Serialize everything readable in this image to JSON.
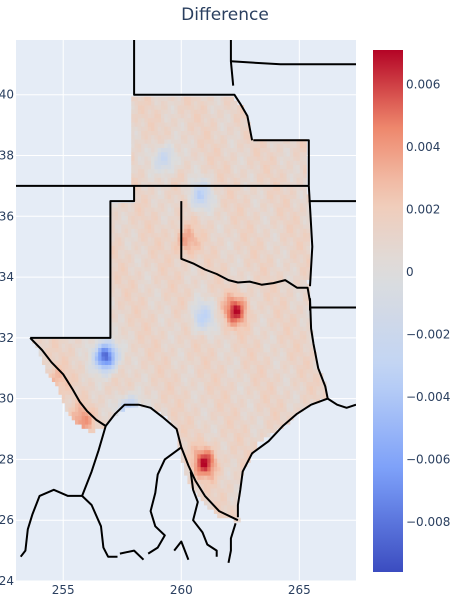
{
  "title": "Difference",
  "x_axis": {
    "ticks": [
      {
        "v": 255,
        "label": "255"
      },
      {
        "v": 260,
        "label": "260"
      },
      {
        "v": 265,
        "label": "265"
      }
    ]
  },
  "y_axis": {
    "ticks": [
      {
        "v": 24,
        "label": "24"
      },
      {
        "v": 26,
        "label": "26"
      },
      {
        "v": 28,
        "label": "28"
      },
      {
        "v": 30,
        "label": "30"
      },
      {
        "v": 32,
        "label": "32"
      },
      {
        "v": 34,
        "label": "34"
      },
      {
        "v": 36,
        "label": "36"
      },
      {
        "v": 38,
        "label": "38"
      },
      {
        "v": 40,
        "label": "40"
      }
    ]
  },
  "colorbar": {
    "range": [
      -0.0096,
      0.0071
    ],
    "ticks": [
      {
        "v": 0.006,
        "label": "0.006"
      },
      {
        "v": 0.004,
        "label": "0.004"
      },
      {
        "v": 0.002,
        "label": "0.002"
      },
      {
        "v": 0,
        "label": "0"
      },
      {
        "v": -0.002,
        "label": "−0.002"
      },
      {
        "v": -0.004,
        "label": "−0.004"
      },
      {
        "v": -0.006,
        "label": "−0.006"
      },
      {
        "v": -0.008,
        "label": "−0.008"
      }
    ],
    "colors": [
      "#3b4cc0",
      "#7b9ff9",
      "#c0d4f5",
      "#dddddd",
      "#f2cbb7",
      "#ee8468",
      "#b40426"
    ]
  },
  "chart_data": {
    "type": "heatmap",
    "title": "Difference",
    "x_range": [
      253,
      267.4
    ],
    "y_range": [
      24,
      41.8
    ],
    "z_range": [
      -0.0096,
      0.0071
    ],
    "hotspots": [
      {
        "x": 256.8,
        "y": 31.4,
        "value": -0.009
      },
      {
        "x": 260.8,
        "y": 36.7,
        "value": -0.003
      },
      {
        "x": 259.3,
        "y": 37.9,
        "value": -0.0025
      },
      {
        "x": 262.3,
        "y": 32.9,
        "value": 0.0065
      },
      {
        "x": 261.0,
        "y": 27.9,
        "value": 0.0065
      },
      {
        "x": 260.2,
        "y": 35.2,
        "value": 0.004
      },
      {
        "x": 260.9,
        "y": 32.7,
        "value": -0.003
      },
      {
        "x": 257.8,
        "y": 29.6,
        "value": -0.005
      },
      {
        "x": 255.8,
        "y": 29.3,
        "value": 0.004
      },
      {
        "x": 254.7,
        "y": 30.6,
        "value": 0.003
      }
    ]
  }
}
